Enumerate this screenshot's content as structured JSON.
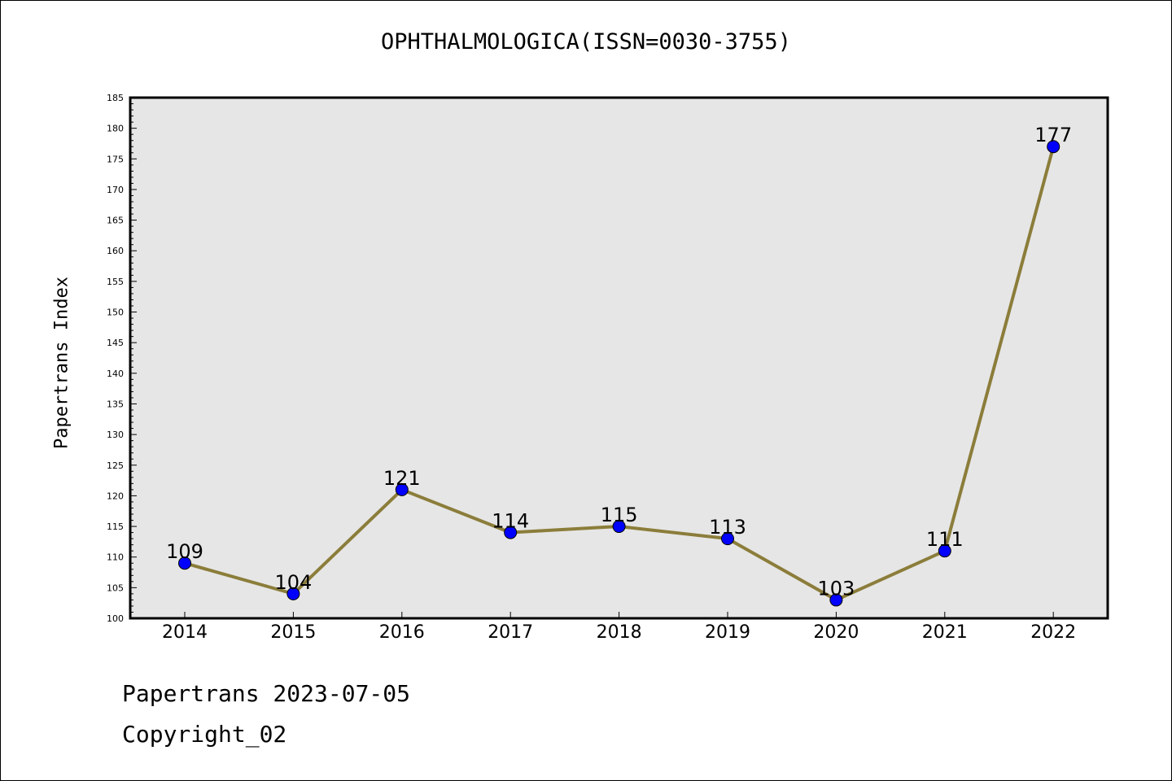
{
  "chart_data": {
    "type": "line",
    "title": "OPHTHALMOLOGICA(ISSN=0030-3755)",
    "xlabel": "",
    "ylabel": "Papertrans Index",
    "x": [
      "2014",
      "2015",
      "2016",
      "2017",
      "2018",
      "2019",
      "2020",
      "2021",
      "2022"
    ],
    "series": [
      {
        "values": [
          109,
          104,
          121,
          114,
          115,
          113,
          103,
          111,
          177
        ]
      }
    ],
    "data_labels": [
      "109",
      "104",
      "121",
      "114",
      "115",
      "113",
      "103",
      "111",
      "177"
    ],
    "ylim": [
      100,
      185
    ],
    "y_ticks": [
      100,
      105,
      110,
      115,
      120,
      125,
      130,
      135,
      140,
      145,
      150,
      155,
      160,
      165,
      170,
      175,
      180,
      185
    ],
    "grid": false,
    "colors": {
      "line": "#8b7d3a",
      "marker": "#0000ff",
      "plot_bg": "#e6e6e6"
    }
  },
  "footer": {
    "line1": "Papertrans 2023-07-05",
    "line2": "Copyright_02"
  }
}
